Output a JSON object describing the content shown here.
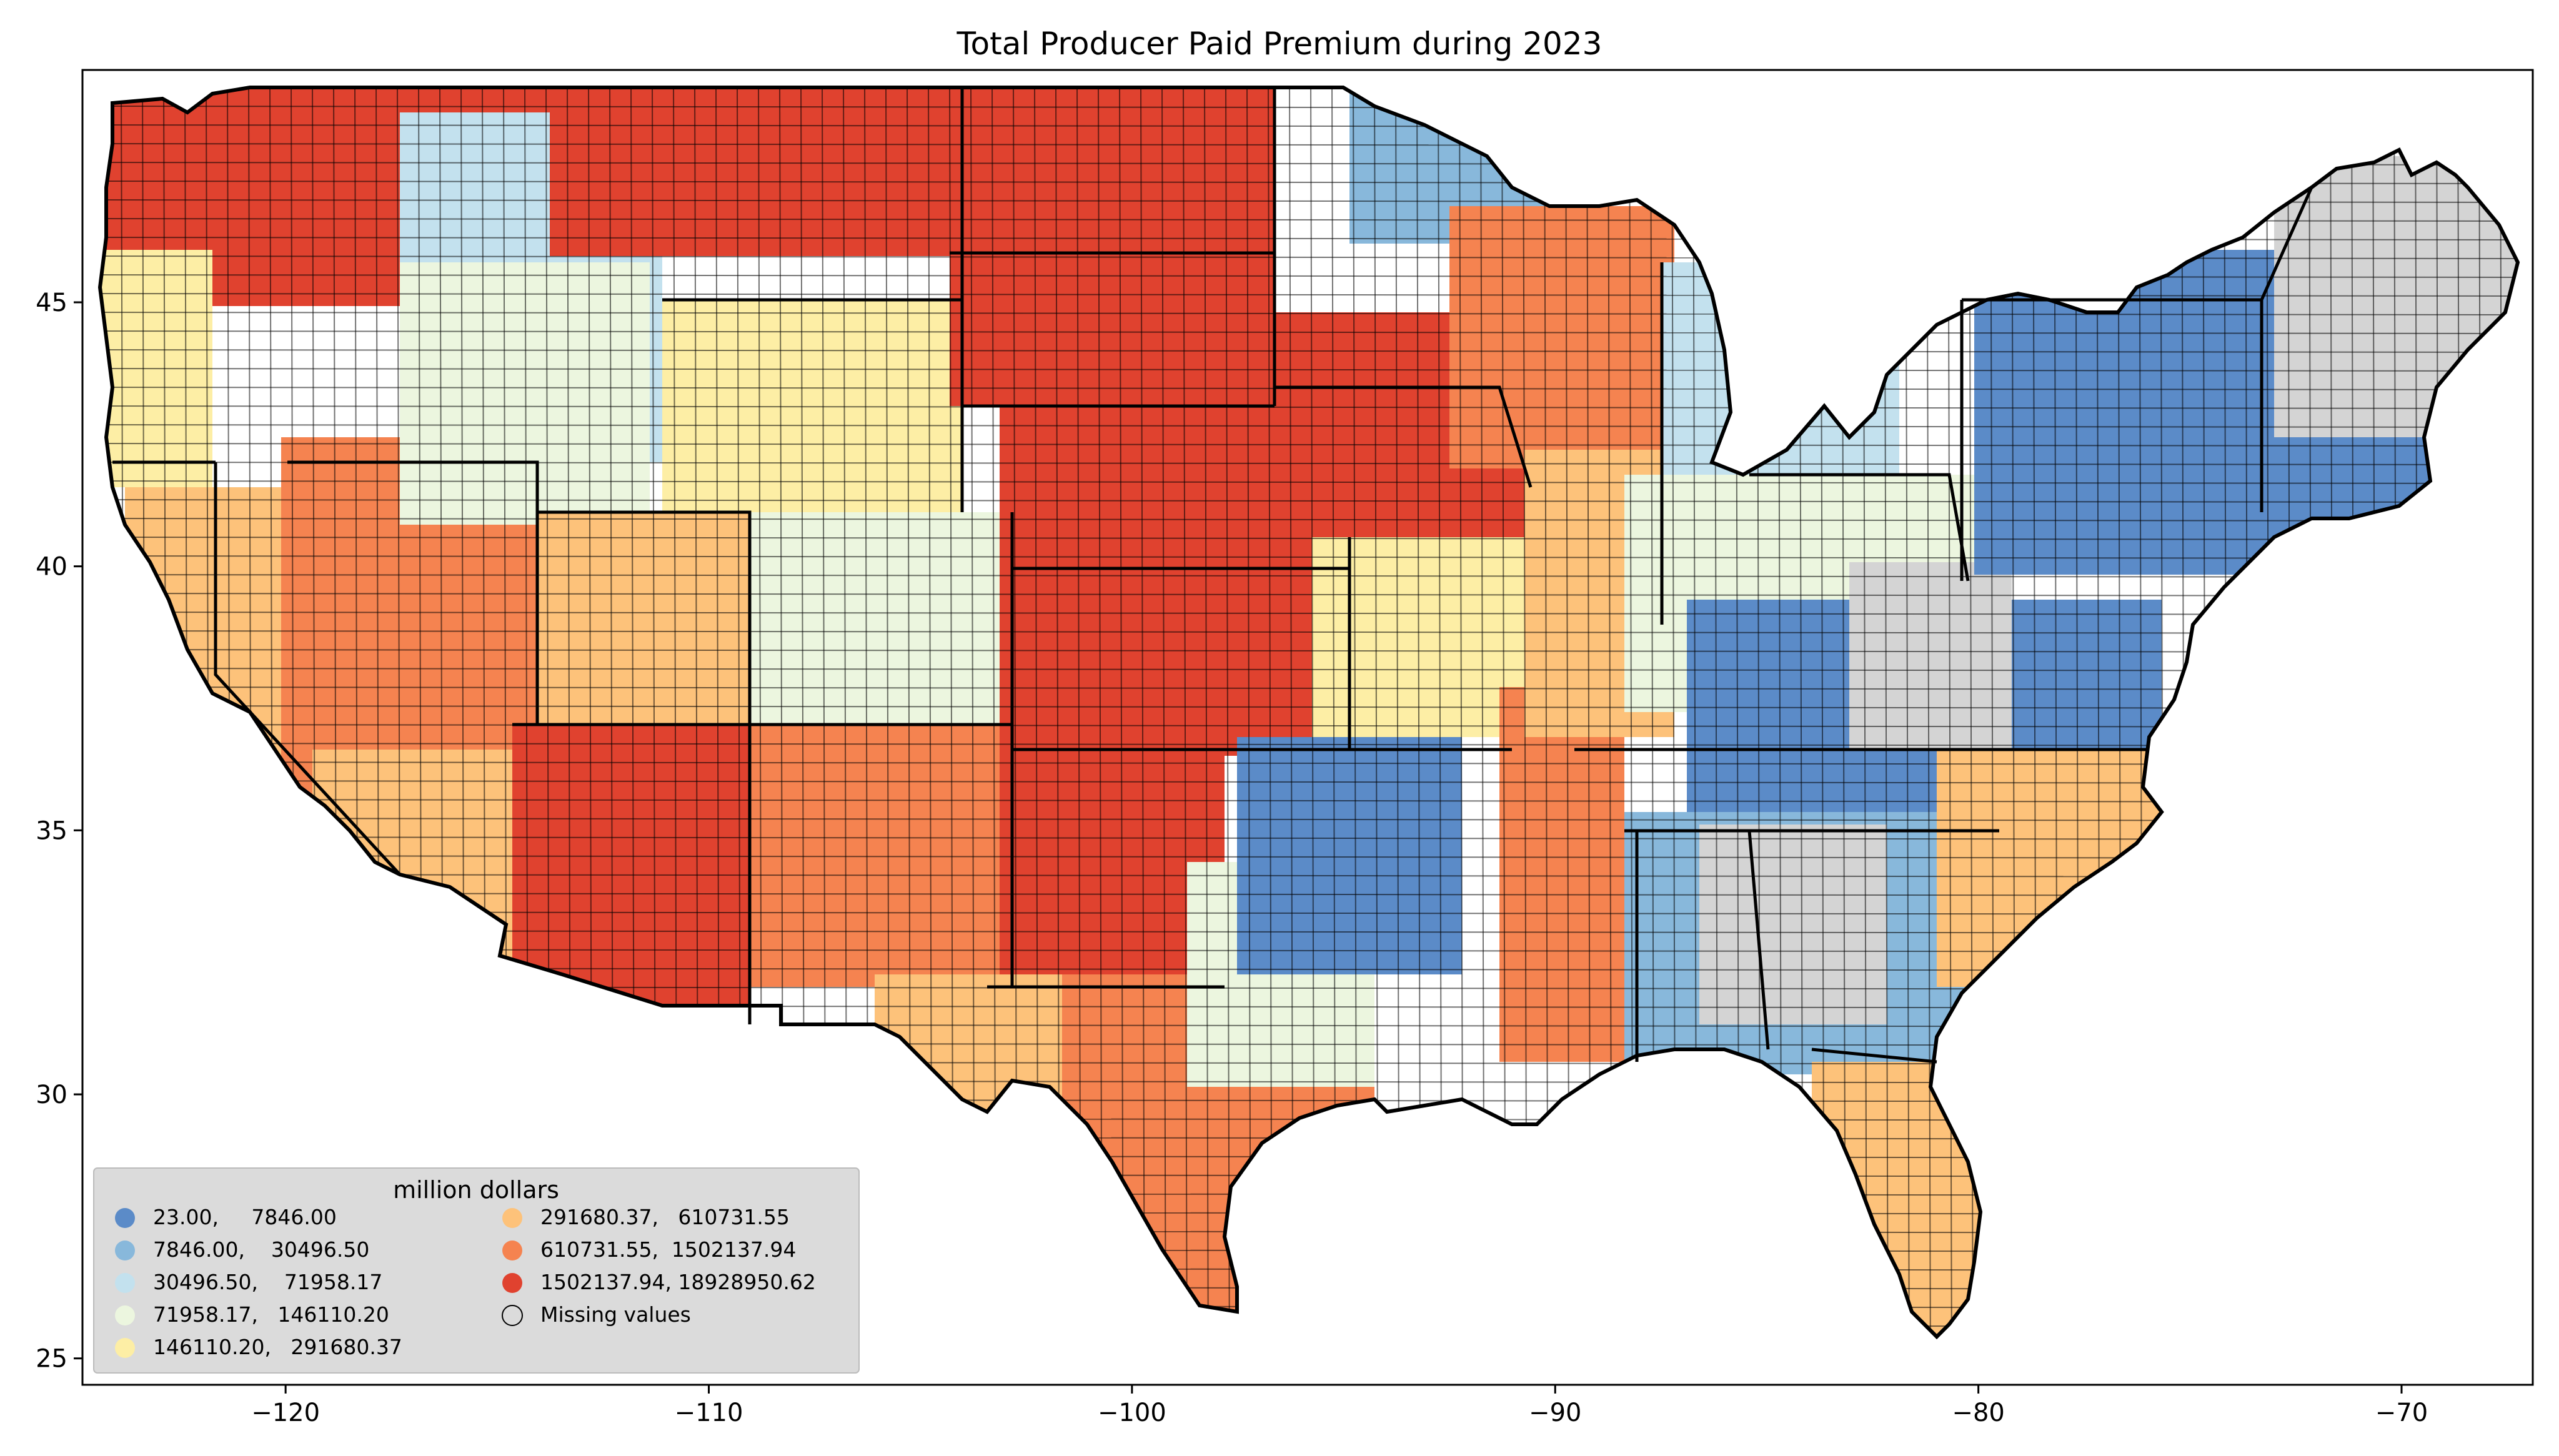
{
  "title": "Total Producer Paid Premium during 2023",
  "axes": {
    "x_ticks": [
      {
        "value": -120,
        "label": "−120"
      },
      {
        "value": -110,
        "label": "−110"
      },
      {
        "value": -100,
        "label": "−100"
      },
      {
        "value": -90,
        "label": "−90"
      },
      {
        "value": -80,
        "label": "−80"
      },
      {
        "value": -70,
        "label": "−70"
      }
    ],
    "y_ticks": [
      {
        "value": 45,
        "label": "45"
      },
      {
        "value": 40,
        "label": "40"
      },
      {
        "value": 35,
        "label": "35"
      },
      {
        "value": 30,
        "label": "30"
      },
      {
        "value": 25,
        "label": "25"
      }
    ],
    "x_range": [
      -124.8,
      -66.9
    ],
    "y_range": [
      24.5,
      49.4
    ]
  },
  "legend": {
    "title": "million dollars",
    "columns": [
      [
        {
          "label": "23.00,     7846.00",
          "color": "#5b8bc8"
        },
        {
          "label": "7846.00,    30496.50",
          "color": "#88b8db"
        },
        {
          "label": "30496.50,    71958.17",
          "color": "#c3e1ee"
        },
        {
          "label": "71958.17,   146110.20",
          "color": "#ecf6df"
        },
        {
          "label": "146110.20,   291680.37",
          "color": "#fdeea5"
        }
      ],
      [
        {
          "label": "291680.37,   610731.55",
          "color": "#fdc27a"
        },
        {
          "label": "610731.55,  1502137.94",
          "color": "#f58350"
        },
        {
          "label": "1502137.94, 18928950.62",
          "color": "#e0422f"
        },
        {
          "label": "Missing values",
          "color": "#d4d4d4",
          "missing": true
        }
      ]
    ]
  },
  "map": {
    "missing_color": "#d4d4d4",
    "border_color": "#000000",
    "background": "#ffffff",
    "regions": [
      {
        "name": "pacific-northwest",
        "class": 7
      },
      {
        "name": "california-central-valley",
        "class": 5
      },
      {
        "name": "great-basin",
        "class": 6
      },
      {
        "name": "northern-rockies",
        "class": 2
      },
      {
        "name": "northern-plains",
        "class": 7
      },
      {
        "name": "central-plains",
        "class": 7
      },
      {
        "name": "southern-plains",
        "class": 6
      },
      {
        "name": "southwest-desert",
        "class": 7
      },
      {
        "name": "corn-belt",
        "class": 7
      },
      {
        "name": "great-lakes",
        "class": 2
      },
      {
        "name": "appalachia",
        "class": 0
      },
      {
        "name": "northeast",
        "class": 0
      },
      {
        "name": "southeast",
        "class": 1
      },
      {
        "name": "florida",
        "class": 5
      },
      {
        "name": "texas-gulf-coast",
        "class": 6
      }
    ]
  }
}
